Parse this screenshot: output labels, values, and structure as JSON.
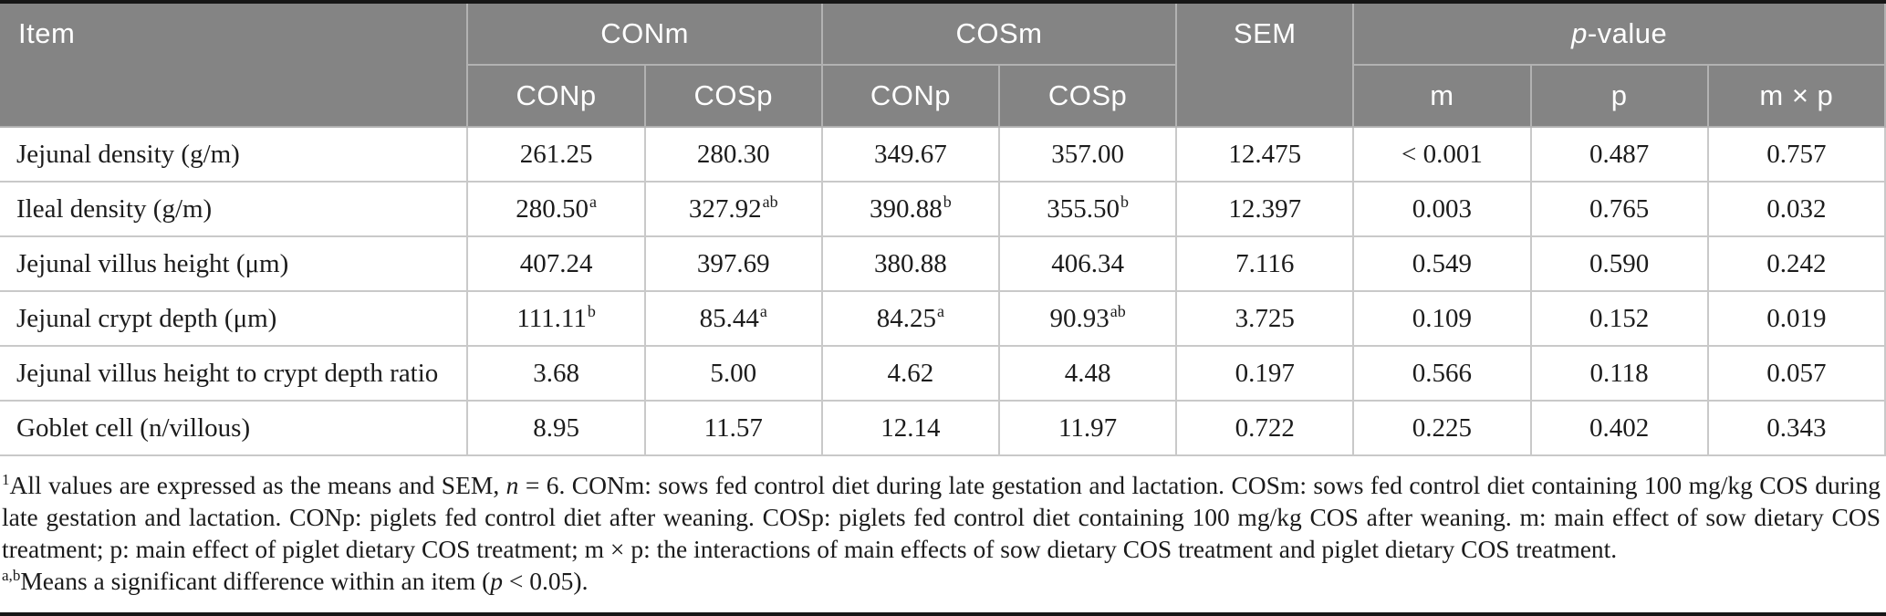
{
  "table": {
    "header": {
      "item_label": "Item",
      "group_conm": "CONm",
      "group_cosm": "COSm",
      "sem": "SEM",
      "pvalue_italic": "p",
      "pvalue_rest": "-value",
      "sub_piglet": [
        "CONp",
        "COSp",
        "CONp",
        "COSp"
      ],
      "sub_p": [
        "m",
        "p",
        "m × p"
      ]
    },
    "rows": [
      {
        "item": "Jejunal density (g/m)",
        "cells": [
          {
            "v": "261.25",
            "sup": ""
          },
          {
            "v": "280.30",
            "sup": ""
          },
          {
            "v": "349.67",
            "sup": ""
          },
          {
            "v": "357.00",
            "sup": ""
          },
          {
            "v": "12.475",
            "sup": ""
          },
          {
            "v": "< 0.001",
            "sup": ""
          },
          {
            "v": "0.487",
            "sup": ""
          },
          {
            "v": "0.757",
            "sup": ""
          }
        ]
      },
      {
        "item": "Ileal density (g/m)",
        "cells": [
          {
            "v": "280.50",
            "sup": "a"
          },
          {
            "v": "327.92",
            "sup": "ab"
          },
          {
            "v": "390.88",
            "sup": "b"
          },
          {
            "v": "355.50",
            "sup": "b"
          },
          {
            "v": "12.397",
            "sup": ""
          },
          {
            "v": "0.003",
            "sup": ""
          },
          {
            "v": "0.765",
            "sup": ""
          },
          {
            "v": "0.032",
            "sup": ""
          }
        ]
      },
      {
        "item": "Jejunal villus height (μm)",
        "cells": [
          {
            "v": "407.24",
            "sup": ""
          },
          {
            "v": "397.69",
            "sup": ""
          },
          {
            "v": "380.88",
            "sup": ""
          },
          {
            "v": "406.34",
            "sup": ""
          },
          {
            "v": "7.116",
            "sup": ""
          },
          {
            "v": "0.549",
            "sup": ""
          },
          {
            "v": "0.590",
            "sup": ""
          },
          {
            "v": "0.242",
            "sup": ""
          }
        ]
      },
      {
        "item": "Jejunal crypt depth (μm)",
        "cells": [
          {
            "v": "111.11",
            "sup": "b"
          },
          {
            "v": "85.44",
            "sup": "a"
          },
          {
            "v": "84.25",
            "sup": "a"
          },
          {
            "v": "90.93",
            "sup": "ab"
          },
          {
            "v": "3.725",
            "sup": ""
          },
          {
            "v": "0.109",
            "sup": ""
          },
          {
            "v": "0.152",
            "sup": ""
          },
          {
            "v": "0.019",
            "sup": ""
          }
        ]
      },
      {
        "item": "Jejunal villus height to crypt depth ratio",
        "cells": [
          {
            "v": "3.68",
            "sup": ""
          },
          {
            "v": "5.00",
            "sup": ""
          },
          {
            "v": "4.62",
            "sup": ""
          },
          {
            "v": "4.48",
            "sup": ""
          },
          {
            "v": "0.197",
            "sup": ""
          },
          {
            "v": "0.566",
            "sup": ""
          },
          {
            "v": "0.118",
            "sup": ""
          },
          {
            "v": "0.057",
            "sup": ""
          }
        ]
      },
      {
        "item": "Goblet cell (n/villous)",
        "cells": [
          {
            "v": "8.95",
            "sup": ""
          },
          {
            "v": "11.57",
            "sup": ""
          },
          {
            "v": "12.14",
            "sup": ""
          },
          {
            "v": "11.97",
            "sup": ""
          },
          {
            "v": "0.722",
            "sup": ""
          },
          {
            "v": "0.225",
            "sup": ""
          },
          {
            "v": "0.402",
            "sup": ""
          },
          {
            "v": "0.343",
            "sup": ""
          }
        ]
      }
    ]
  },
  "footnotes": [
    {
      "sup": "1",
      "pre": "All values are expressed as the means and SEM, ",
      "italic": "n",
      "post": " = 6. CONm: sows fed control diet during late gestation and lactation. COSm: sows fed control diet containing 100 mg/kg COS during late gestation and lactation. CONp: piglets fed control diet after weaning. COSp: piglets fed control diet containing 100 mg/kg COS after weaning. m: main effect of sow dietary COS treatment; p: main effect of piglet dietary COS treatment; m × p: the interactions of main effects of sow dietary COS treatment and piglet dietary COS treatment."
    },
    {
      "sup": "a,b",
      "pre": "Means a significant difference within an item (",
      "italic": "p",
      "post": " < 0.05)."
    }
  ],
  "colors": {
    "header_bg": "#848484",
    "header_text": "#ffffff",
    "body_text": "#1c1c1c",
    "grid_line": "#c9c9c9",
    "top_rule": "#161616"
  }
}
